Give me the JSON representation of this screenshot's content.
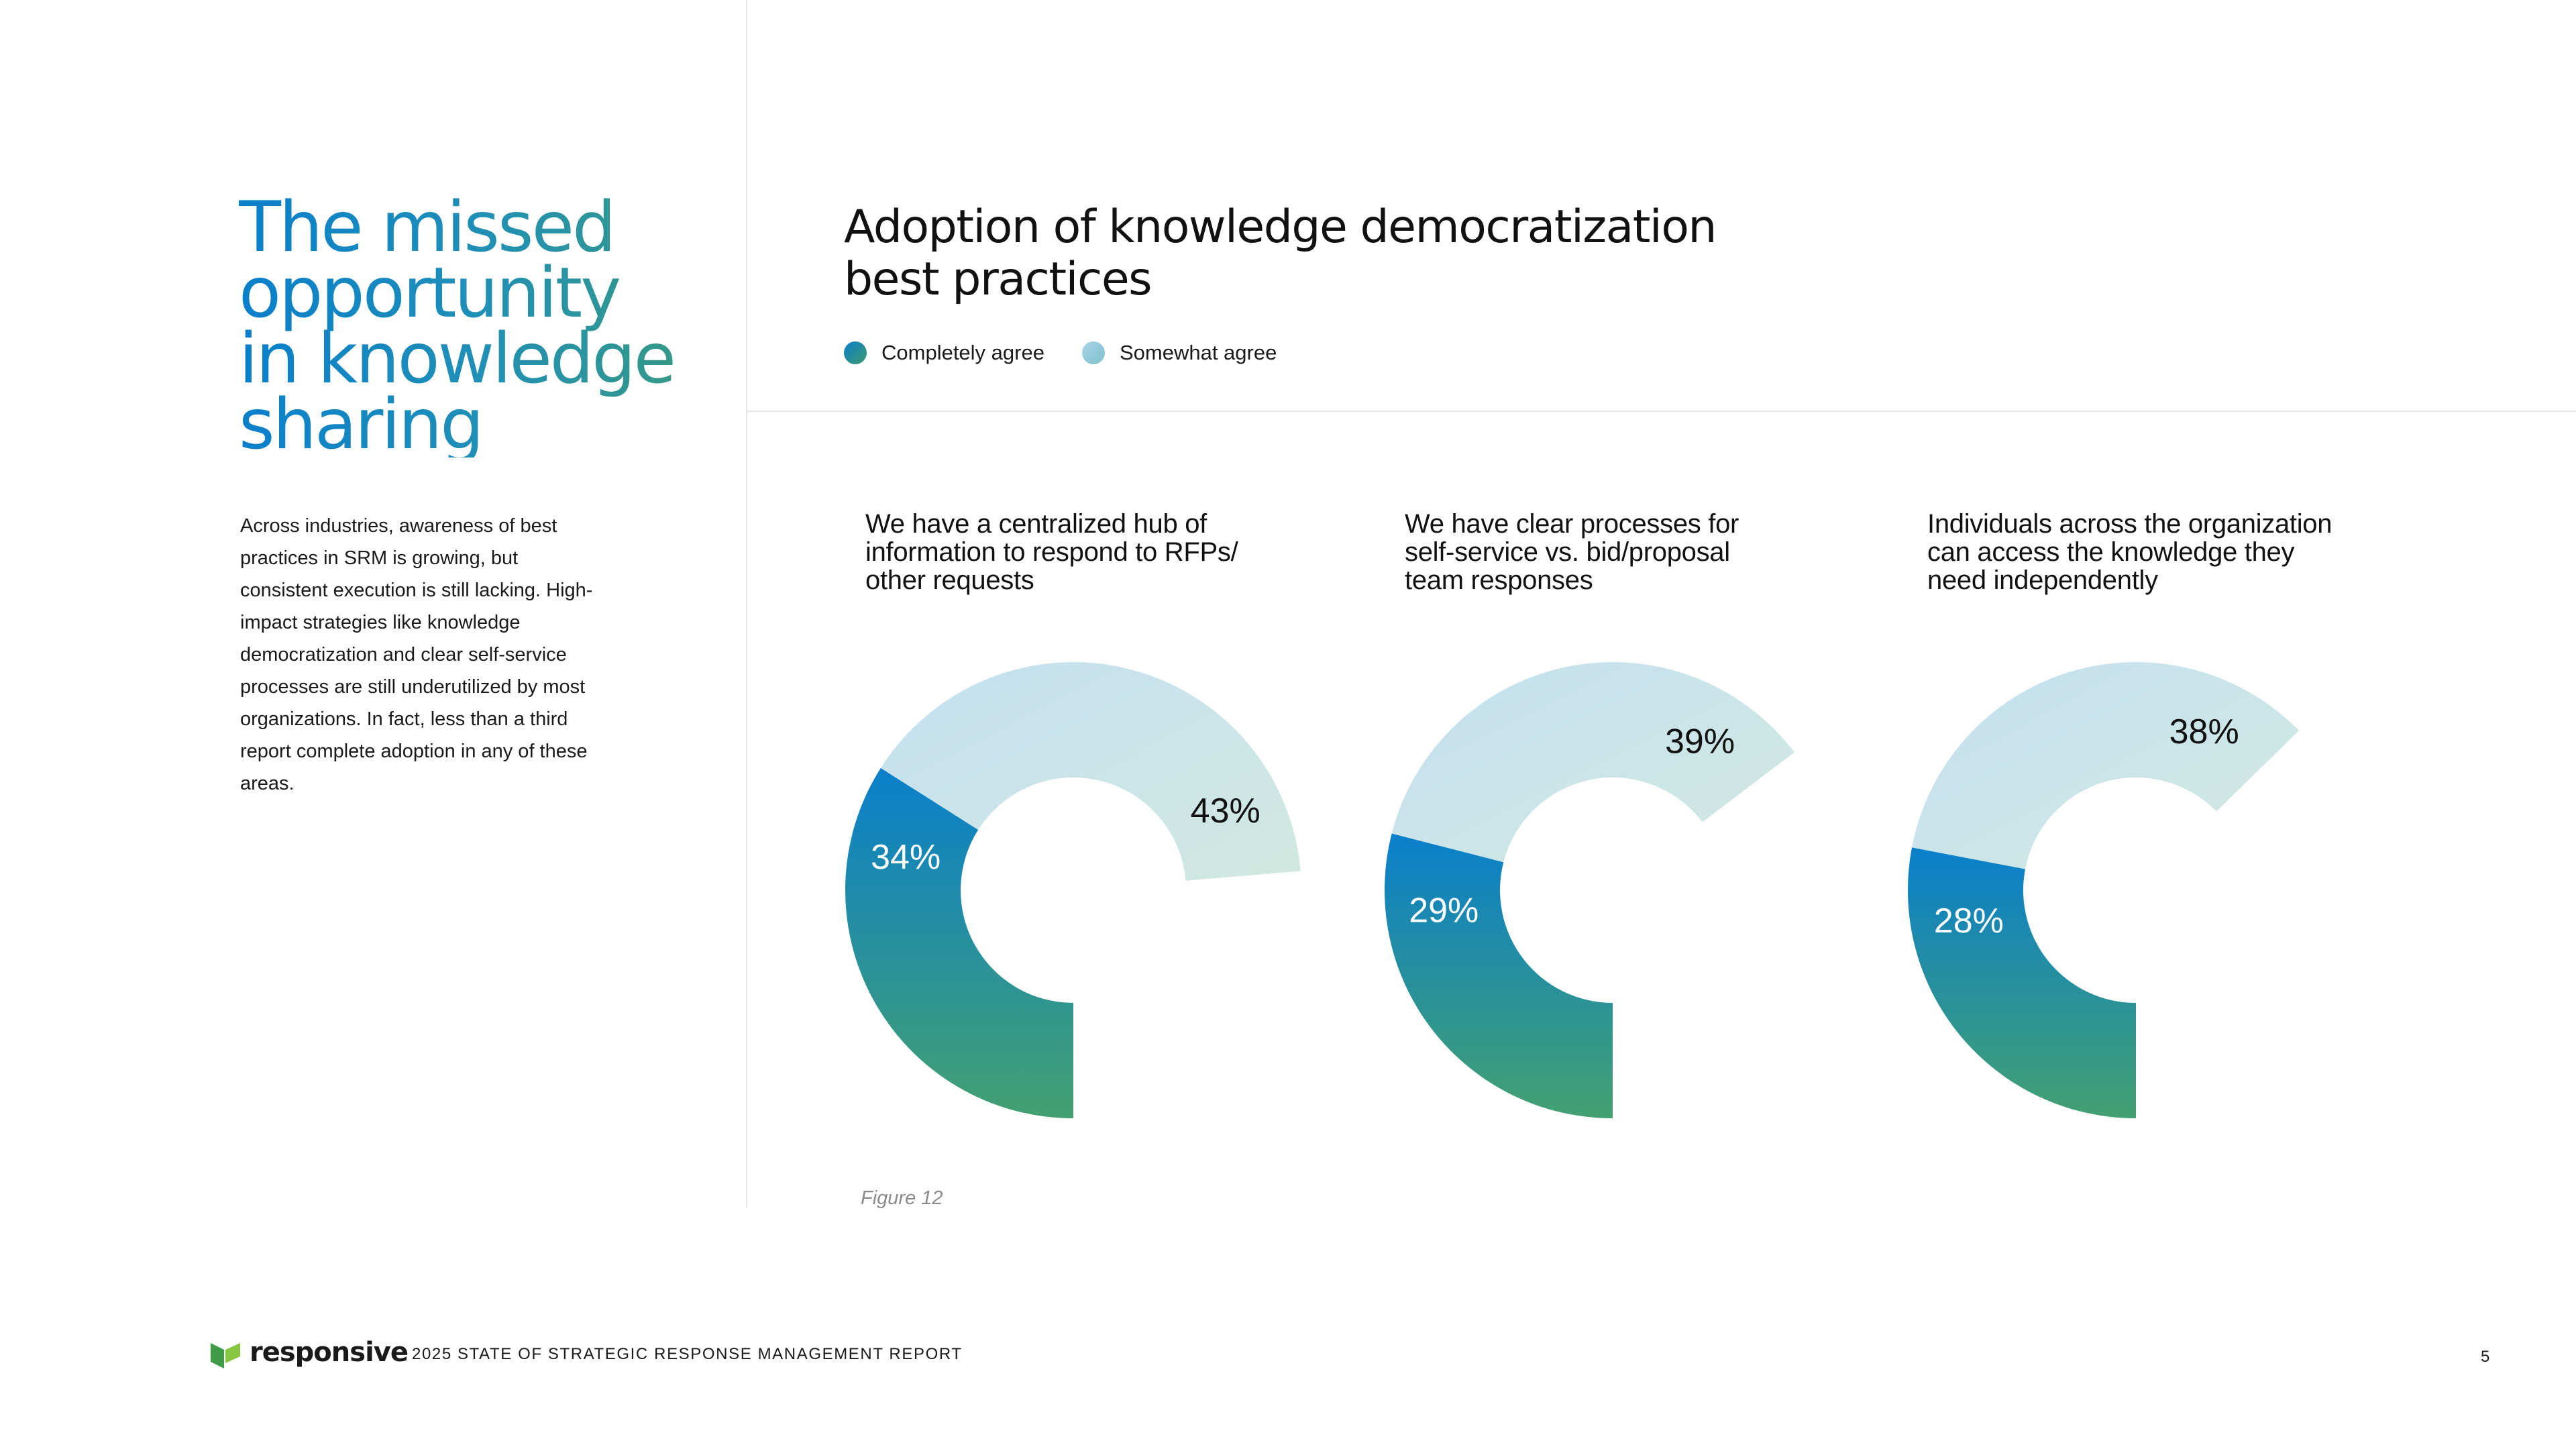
{
  "page": {
    "title_lines": [
      "The missed",
      "opportunity",
      "in knowledge",
      "sharing"
    ],
    "intro": "Across industries, awareness of best practices in SRM is growing, but consistent execution is still lacking. High-impact strategies like knowledge democratization and clear self-service processes are still underutilized by most organizations. In fact, less than a third report complete adoption in any of these areas."
  },
  "colors": {
    "completely_agree_start": "#0a7fcb",
    "completely_agree_end": "#43a071",
    "somewhat_agree_start": "#c3e0f1",
    "somewhat_agree_end": "#d2e9e0",
    "title_gradient": [
      "#0a7fcb",
      "#3d9c78"
    ]
  },
  "chart_data": {
    "type": "pie",
    "variant": "donut",
    "title": "Adoption of knowledge democratization best practices",
    "legend": {
      "placement": "top-left",
      "entries": [
        "Completely agree",
        "Somewhat agree"
      ]
    },
    "series_names": [
      "Completely agree",
      "Somewhat agree"
    ],
    "charts": [
      {
        "label": "We have a centralized hub of information to respond to RFPs/ other requests",
        "completely_agree": 34,
        "somewhat_agree": 43,
        "labels": [
          "34%",
          "43%"
        ]
      },
      {
        "label": "We have clear processes for self-service vs. bid/proposal team responses",
        "completely_agree": 29,
        "somewhat_agree": 39,
        "labels": [
          "29%",
          "39%"
        ]
      },
      {
        "label": "Individuals across the organization can access the knowledge they need independently",
        "completely_agree": 28,
        "somewhat_agree": 38,
        "labels": [
          "28%",
          "38%"
        ]
      }
    ],
    "caption": "Figure 12"
  },
  "footer": {
    "brand": "responsive",
    "report": "2025 STATE OF STRATEGIC RESPONSE MANAGEMENT REPORT",
    "page_number": "5"
  }
}
